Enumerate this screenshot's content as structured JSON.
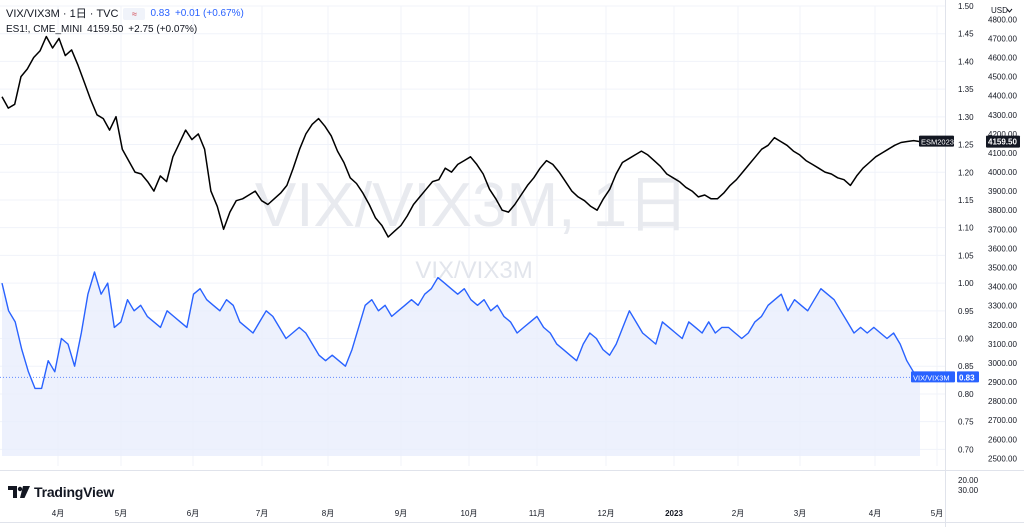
{
  "legend": {
    "title": "VIX/VIX3M · 1日 · TVC",
    "ratio_value": "0.83",
    "ratio_change": "+0.01 (+0.67%)",
    "es_label": "ES1!, CME_MINI",
    "es_value": "4159.50",
    "es_change": "+2.75 (+0.07%)"
  },
  "watermark": {
    "main": "VIX/VIX3M, 1日",
    "sub": "VIX/VIX3M"
  },
  "currency_label": "USD",
  "brand": "TradingView",
  "colors": {
    "ratio_line": "#2962ff",
    "ratio_fill": "#e8eefc",
    "es_line": "#000000",
    "es_tag": "#131722",
    "grid": "#f0f3fa",
    "axis_text": "#131722"
  },
  "chart_data": {
    "type": "line",
    "x_ticks": [
      "4月",
      "5月",
      "6月",
      "7月",
      "8月",
      "9月",
      "10月",
      "11月",
      "12月",
      "2023",
      "2月",
      "3月",
      "4月",
      "5月"
    ],
    "axes": {
      "left_scale": {
        "ticks": [
          "1.50",
          "1.45",
          "1.40",
          "1.35",
          "1.30",
          "1.25",
          "1.20",
          "1.15",
          "1.10",
          "1.05",
          "1.00",
          "0.95",
          "0.90",
          "0.85",
          "0.80",
          "0.75",
          "0.70"
        ],
        "range": [
          0.67,
          1.5
        ],
        "scale": "linear"
      },
      "right_scale": {
        "ticks": [
          "4800.00",
          "4700.00",
          "4600.00",
          "4500.00",
          "4400.00",
          "4300.00",
          "4200.00",
          "4100.00",
          "4000.00",
          "3900.00",
          "3800.00",
          "3700.00",
          "3600.00",
          "3500.00",
          "3400.00",
          "3300.00",
          "3200.00",
          "3100.00",
          "3000.00",
          "2900.00",
          "2800.00",
          "2700.00",
          "2600.00",
          "2500.00"
        ],
        "range": [
          2460,
          4870
        ],
        "scale": "linear"
      },
      "lower_scale": {
        "ticks": [
          "20.00",
          "30.00"
        ]
      }
    },
    "series": [
      {
        "name": "ESM2023",
        "last_value_label": "4159.50",
        "scale": "right",
        "values": [
          4395,
          4335,
          4355,
          4500,
          4540,
          4600,
          4635,
          4710,
          4650,
          4700,
          4610,
          4640,
          4560,
          4470,
          4380,
          4300,
          4280,
          4220,
          4290,
          4120,
          4060,
          4000,
          3990,
          3950,
          3900,
          3980,
          3950,
          4080,
          4150,
          4220,
          4170,
          4200,
          4120,
          3900,
          3820,
          3700,
          3790,
          3850,
          3860,
          3880,
          3900,
          3850,
          3830,
          3860,
          3890,
          3930,
          4020,
          4120,
          4200,
          4250,
          4280,
          4240,
          4190,
          4110,
          4050,
          3970,
          3940,
          3890,
          3830,
          3760,
          3720,
          3660,
          3690,
          3720,
          3770,
          3830,
          3870,
          3910,
          3950,
          3960,
          4020,
          4000,
          4040,
          4060,
          4080,
          4040,
          3990,
          3910,
          3860,
          3800,
          3790,
          3830,
          3880,
          3930,
          3970,
          4020,
          4060,
          4040,
          4000,
          3950,
          3900,
          3870,
          3850,
          3820,
          3800,
          3860,
          3910,
          3990,
          4050,
          4070,
          4090,
          4110,
          4090,
          4060,
          4030,
          3990,
          3970,
          3950,
          3920,
          3900,
          3870,
          3880,
          3860,
          3860,
          3890,
          3930,
          3960,
          4000,
          4040,
          4080,
          4120,
          4140,
          4180,
          4160,
          4140,
          4110,
          4090,
          4060,
          4040,
          4020,
          4000,
          3990,
          3970,
          3960,
          3930,
          3980,
          4020,
          4050,
          4080,
          4100,
          4120,
          4140,
          4155,
          4160,
          4165,
          4159.5
        ]
      },
      {
        "name": "VIX/VIX3M",
        "last_value_label": "0.83",
        "scale": "left",
        "values": [
          1.0,
          0.95,
          0.93,
          0.88,
          0.84,
          0.81,
          0.81,
          0.86,
          0.84,
          0.9,
          0.89,
          0.85,
          0.91,
          0.98,
          1.02,
          0.98,
          1.0,
          0.92,
          0.93,
          0.97,
          0.95,
          0.96,
          0.94,
          0.93,
          0.92,
          0.95,
          0.94,
          0.93,
          0.92,
          0.98,
          0.99,
          0.97,
          0.96,
          0.95,
          0.97,
          0.96,
          0.93,
          0.92,
          0.91,
          0.93,
          0.95,
          0.94,
          0.92,
          0.9,
          0.91,
          0.92,
          0.91,
          0.89,
          0.87,
          0.86,
          0.87,
          0.86,
          0.85,
          0.88,
          0.92,
          0.96,
          0.97,
          0.95,
          0.96,
          0.94,
          0.95,
          0.96,
          0.97,
          0.96,
          0.98,
          0.99,
          1.01,
          1.0,
          0.99,
          0.98,
          0.99,
          0.97,
          0.96,
          0.97,
          0.95,
          0.96,
          0.94,
          0.93,
          0.91,
          0.92,
          0.93,
          0.94,
          0.92,
          0.91,
          0.89,
          0.88,
          0.87,
          0.86,
          0.89,
          0.91,
          0.9,
          0.88,
          0.87,
          0.89,
          0.92,
          0.95,
          0.93,
          0.91,
          0.9,
          0.89,
          0.93,
          0.92,
          0.91,
          0.9,
          0.93,
          0.92,
          0.91,
          0.93,
          0.91,
          0.92,
          0.92,
          0.91,
          0.9,
          0.91,
          0.93,
          0.94,
          0.96,
          0.97,
          0.98,
          0.95,
          0.97,
          0.96,
          0.95,
          0.97,
          0.99,
          0.98,
          0.97,
          0.95,
          0.93,
          0.91,
          0.92,
          0.91,
          0.92,
          0.91,
          0.9,
          0.91,
          0.89,
          0.86,
          0.84,
          0.83
        ]
      }
    ]
  }
}
